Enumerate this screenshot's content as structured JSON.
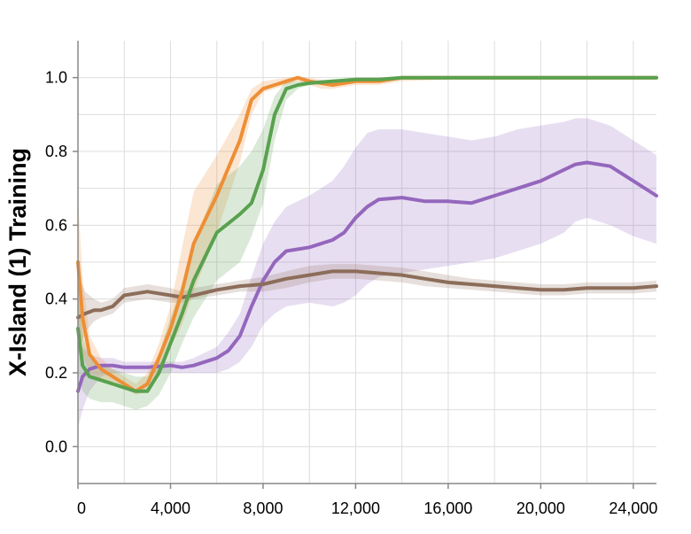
{
  "chart_data": {
    "type": "line",
    "title": "",
    "xlabel": "",
    "ylabel": "X-Island (1) Training",
    "xlim": [
      0,
      25000
    ],
    "ylim": [
      -0.1,
      1.1
    ],
    "grid": true,
    "x_ticks": [
      0,
      4000,
      8000,
      12000,
      16000,
      20000,
      24000
    ],
    "x_tick_labels": [
      "0",
      "4,000",
      "8,000",
      "12,000",
      "16,000",
      "20,000",
      "24,000"
    ],
    "y_ticks": [
      0.0,
      0.2,
      0.4,
      0.6,
      0.8,
      1.0
    ],
    "y_tick_labels": [
      "0.0",
      "0.2",
      "0.4",
      "0.6",
      "0.8",
      "1.0"
    ],
    "series": [
      {
        "color": "#9467bd",
        "x": [
          0,
          200,
          500,
          1000,
          1500,
          2000,
          3000,
          4000,
          4500,
          5000,
          6000,
          6500,
          7000,
          7500,
          8000,
          8500,
          9000,
          10000,
          11000,
          11500,
          12000,
          12500,
          13000,
          14000,
          15000,
          16000,
          17000,
          18000,
          19000,
          20000,
          21000,
          21500,
          22000,
          23000,
          24000,
          25000
        ],
        "y": [
          0.15,
          0.19,
          0.21,
          0.22,
          0.22,
          0.215,
          0.215,
          0.22,
          0.215,
          0.22,
          0.24,
          0.26,
          0.3,
          0.38,
          0.45,
          0.5,
          0.53,
          0.54,
          0.56,
          0.58,
          0.62,
          0.65,
          0.67,
          0.675,
          0.665,
          0.665,
          0.66,
          0.68,
          0.7,
          0.72,
          0.75,
          0.765,
          0.77,
          0.76,
          0.72,
          0.68
        ],
        "lower": [
          0.05,
          0.1,
          0.15,
          0.19,
          0.2,
          0.2,
          0.2,
          0.2,
          0.2,
          0.2,
          0.2,
          0.21,
          0.23,
          0.27,
          0.33,
          0.36,
          0.38,
          0.39,
          0.38,
          0.39,
          0.41,
          0.44,
          0.46,
          0.47,
          0.48,
          0.49,
          0.5,
          0.51,
          0.53,
          0.55,
          0.58,
          0.61,
          0.62,
          0.6,
          0.57,
          0.55
        ],
        "upper": [
          0.28,
          0.27,
          0.25,
          0.24,
          0.24,
          0.23,
          0.23,
          0.23,
          0.23,
          0.24,
          0.27,
          0.31,
          0.36,
          0.46,
          0.55,
          0.61,
          0.65,
          0.68,
          0.72,
          0.76,
          0.81,
          0.85,
          0.86,
          0.86,
          0.85,
          0.84,
          0.83,
          0.84,
          0.86,
          0.87,
          0.88,
          0.89,
          0.89,
          0.87,
          0.83,
          0.79
        ]
      },
      {
        "color": "#8c6d5a",
        "x": [
          0,
          300,
          700,
          1000,
          1500,
          2000,
          3000,
          4000,
          4500,
          5000,
          6000,
          7000,
          8000,
          9000,
          10000,
          11000,
          12000,
          13000,
          14000,
          15000,
          16000,
          17000,
          18000,
          19000,
          20000,
          21000,
          22000,
          23000,
          24000,
          25000
        ],
        "y": [
          0.35,
          0.36,
          0.37,
          0.37,
          0.38,
          0.41,
          0.42,
          0.41,
          0.405,
          0.41,
          0.425,
          0.435,
          0.44,
          0.455,
          0.465,
          0.475,
          0.475,
          0.47,
          0.465,
          0.455,
          0.445,
          0.44,
          0.435,
          0.43,
          0.425,
          0.425,
          0.43,
          0.43,
          0.43,
          0.435
        ],
        "lower": [
          0.25,
          0.31,
          0.34,
          0.35,
          0.36,
          0.39,
          0.4,
          0.39,
          0.39,
          0.4,
          0.41,
          0.42,
          0.42,
          0.43,
          0.445,
          0.455,
          0.455,
          0.45,
          0.445,
          0.435,
          0.43,
          0.425,
          0.42,
          0.415,
          0.41,
          0.41,
          0.415,
          0.415,
          0.415,
          0.42
        ],
        "upper": [
          0.47,
          0.42,
          0.4,
          0.39,
          0.4,
          0.43,
          0.44,
          0.43,
          0.42,
          0.43,
          0.44,
          0.45,
          0.46,
          0.475,
          0.49,
          0.495,
          0.495,
          0.49,
          0.485,
          0.475,
          0.465,
          0.455,
          0.45,
          0.445,
          0.44,
          0.44,
          0.445,
          0.445,
          0.445,
          0.45
        ]
      },
      {
        "color": "#ee8e35",
        "x": [
          0,
          200,
          500,
          1000,
          1500,
          2000,
          2500,
          3000,
          3500,
          4000,
          4500,
          5000,
          6000,
          7000,
          7500,
          8000,
          8500,
          9000,
          9500,
          10000,
          10500,
          11000,
          12000,
          13000,
          14000,
          16000,
          18000,
          20000,
          22000,
          24000,
          25000
        ],
        "y": [
          0.5,
          0.35,
          0.25,
          0.21,
          0.19,
          0.17,
          0.15,
          0.17,
          0.24,
          0.32,
          0.42,
          0.55,
          0.68,
          0.83,
          0.94,
          0.97,
          0.98,
          0.99,
          1.0,
          0.99,
          0.985,
          0.98,
          0.99,
          0.99,
          1.0,
          1.0,
          1.0,
          1.0,
          1.0,
          1.0,
          1.0
        ],
        "lower": [
          0.3,
          0.25,
          0.2,
          0.18,
          0.17,
          0.16,
          0.14,
          0.15,
          0.2,
          0.27,
          0.33,
          0.42,
          0.58,
          0.77,
          0.9,
          0.96,
          0.97,
          0.98,
          0.99,
          0.98,
          0.97,
          0.97,
          0.98,
          0.98,
          0.99,
          0.995,
          0.995,
          0.995,
          0.995,
          0.995,
          0.995
        ],
        "upper": [
          0.68,
          0.46,
          0.3,
          0.24,
          0.21,
          0.19,
          0.17,
          0.2,
          0.28,
          0.38,
          0.54,
          0.69,
          0.79,
          0.9,
          0.97,
          0.99,
          0.995,
          1.0,
          1.0,
          1.0,
          0.995,
          0.99,
          1.0,
          1.0,
          1.0,
          1.0,
          1.0,
          1.0,
          1.0,
          1.0,
          1.0
        ]
      },
      {
        "color": "#59a14f",
        "x": [
          0,
          200,
          500,
          1000,
          1500,
          2000,
          2500,
          3000,
          3500,
          4000,
          4500,
          5000,
          6000,
          7000,
          7500,
          8000,
          8500,
          9000,
          9500,
          10000,
          11000,
          12000,
          13000,
          14000,
          16000,
          18000,
          20000,
          22000,
          24000,
          25000
        ],
        "y": [
          0.32,
          0.22,
          0.19,
          0.18,
          0.17,
          0.16,
          0.15,
          0.15,
          0.2,
          0.28,
          0.36,
          0.45,
          0.58,
          0.63,
          0.66,
          0.75,
          0.9,
          0.97,
          0.98,
          0.985,
          0.99,
          0.995,
          0.995,
          1.0,
          1.0,
          1.0,
          1.0,
          1.0,
          1.0,
          1.0
        ],
        "lower": [
          0.2,
          0.15,
          0.13,
          0.12,
          0.12,
          0.11,
          0.1,
          0.11,
          0.14,
          0.2,
          0.28,
          0.35,
          0.45,
          0.5,
          0.57,
          0.66,
          0.83,
          0.94,
          0.97,
          0.98,
          0.985,
          0.99,
          0.99,
          0.995,
          0.995,
          0.995,
          0.995,
          0.995,
          0.995,
          0.995
        ],
        "upper": [
          0.43,
          0.3,
          0.24,
          0.22,
          0.21,
          0.2,
          0.19,
          0.19,
          0.25,
          0.35,
          0.44,
          0.55,
          0.71,
          0.76,
          0.8,
          0.86,
          0.95,
          0.99,
          0.99,
          0.99,
          0.995,
          1.0,
          1.0,
          1.0,
          1.0,
          1.0,
          1.0,
          1.0,
          1.0,
          1.0
        ]
      }
    ]
  }
}
